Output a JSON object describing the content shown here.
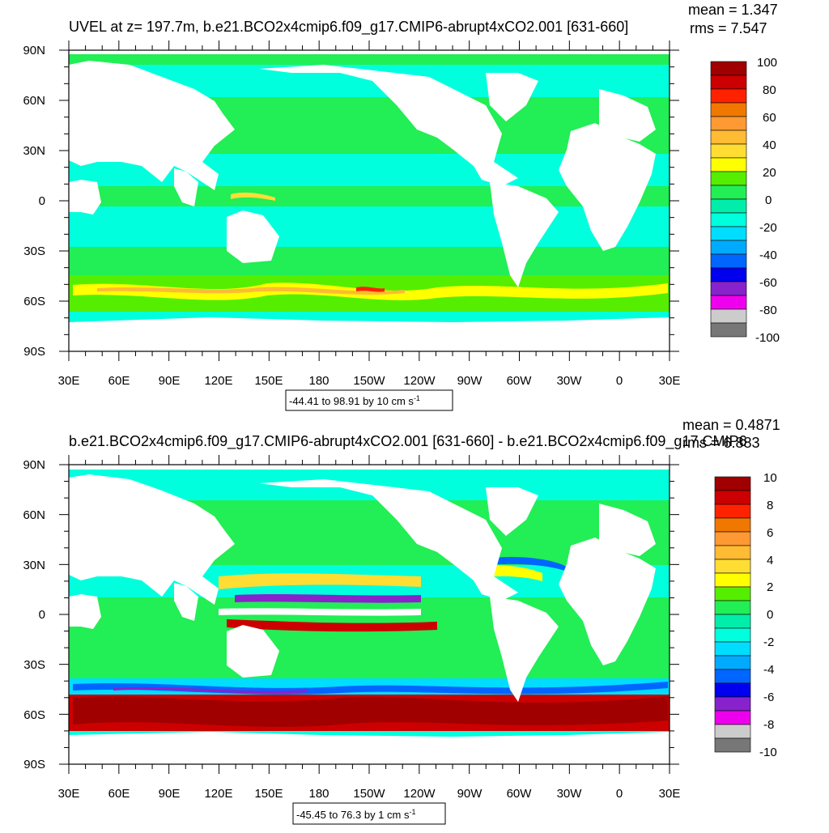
{
  "panels": [
    {
      "title": "UVEL at z= 197.7m, b.e21.BCO2x4cmip6.f09_g17.CMIP6-abrupt4xCO2.001 [631-660]",
      "mean_text": "mean = 1.347",
      "rms_text": "rms = 7.547",
      "range_text": "-44.41 to 98.91 by 10 cm s",
      "range_sup": "-1",
      "lat_labels": [
        "90N",
        "60N",
        "30N",
        "0",
        "30S",
        "60S",
        "90S"
      ],
      "lon_labels": [
        "30E",
        "60E",
        "90E",
        "120E",
        "150E",
        "180",
        "150W",
        "120W",
        "90W",
        "60W",
        "30W",
        "0",
        "30E"
      ],
      "colorbar_labels": [
        "100",
        "80",
        "60",
        "40",
        "20",
        "0",
        "-20",
        "-40",
        "-60",
        "-80",
        "-100"
      ]
    },
    {
      "title": "b.e21.BCO2x4cmip6.f09_g17.CMIP6-abrupt4xCO2.001 [631-660] - b.e21.BCO2x4cmip6.f09_g17.CMIP6",
      "mean_text": "mean = 0.4871",
      "rms_text": "rms = 6.883",
      "range_text": "-45.45 to 76.3 by 1 cm s",
      "range_sup": "-1",
      "lat_labels": [
        "90N",
        "60N",
        "30N",
        "0",
        "30S",
        "60S",
        "90S"
      ],
      "lon_labels": [
        "30E",
        "60E",
        "90E",
        "120E",
        "150E",
        "180",
        "150W",
        "120W",
        "90W",
        "60W",
        "30W",
        "0",
        "30E"
      ],
      "colorbar_labels": [
        "10",
        "8",
        "6",
        "4",
        "2",
        "0",
        "-2",
        "-4",
        "-6",
        "-8",
        "-10"
      ]
    }
  ],
  "palette": [
    "#a00000",
    "#cc0000",
    "#ff2200",
    "#f07800",
    "#ff9933",
    "#ffbb33",
    "#ffdd33",
    "#ffff00",
    "#55ee00",
    "#22ee55",
    "#00eeaa",
    "#00ffdd",
    "#00ddff",
    "#00aaff",
    "#0066ff",
    "#0000ee",
    "#8822cc",
    "#ee00ee",
    "#cccccc",
    "#777777"
  ]
}
